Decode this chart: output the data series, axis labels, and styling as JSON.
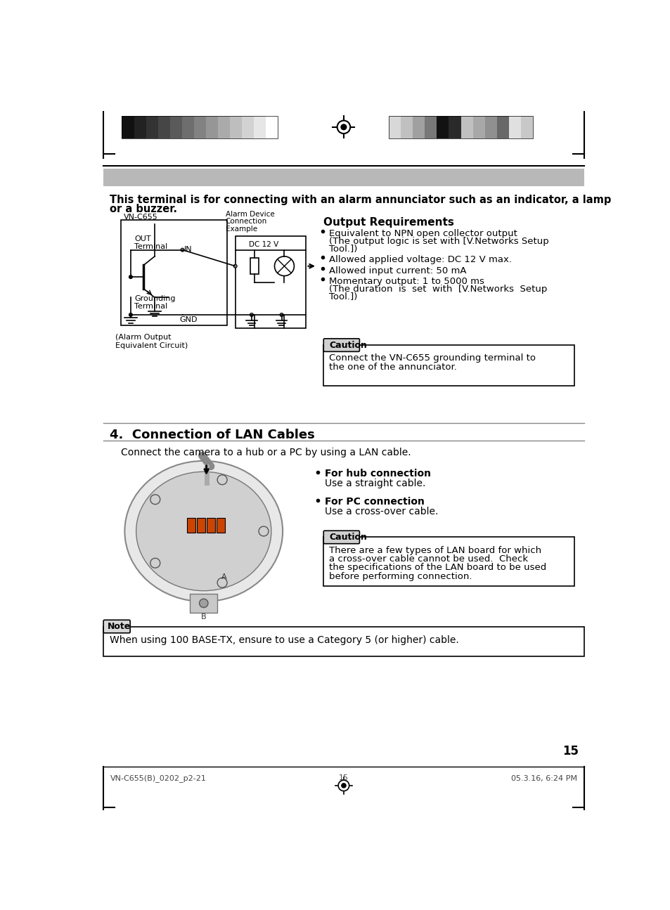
{
  "page_bg": "#ffffff",
  "outer_border_color": "#000000",
  "section_title": "4.  Connection of LAN Cables",
  "section_desc": "Connect the camera to a hub or a PC by using a LAN cable.",
  "bold_text_1": "This terminal is for connecting with an alarm annunciator such as an indicator, a lamp",
  "bold_text_2": "or a buzzer.",
  "output_req_title": "Output Requirements",
  "output_req_bullets": [
    "Equivalent to NPN open collector output\n(The output logic is set with [V.Networks Setup\nTool.])",
    "Allowed applied voltage: DC 12 V max.",
    "Allowed input current: 50 mA",
    "Momentary output: 1 to 5000 ms\n(The duration  is  set  with  [V.Networks  Setup\nTool.])"
  ],
  "caution1_label": "Caution",
  "caution1_text": "Connect the VN-C655 grounding terminal to\nthe one of the annunciator.",
  "caution2_label": "Caution",
  "caution2_text": "There are a few types of LAN board for which\na cross-over cable cannot be used.  Check\nthe specifications of the LAN board to be used\nbefore performing connection.",
  "note_label": "Note",
  "note_text": "When using 100 BASE-TX, ensure to use a Category 5 (or higher) cable.",
  "hub_bullet": "For hub connection",
  "hub_desc": "Use a straight cable.",
  "pc_bullet": "For PC connection",
  "pc_desc": "Use a cross-over cable.",
  "circuit_vn_c655": "VN-C655",
  "circuit_out_terminal": "OUT\nTerminal",
  "circuit_grounding": "Grounding\nTerminal",
  "circuit_alarm_device_1": "Alarm Device",
  "circuit_alarm_device_2": "Connection",
  "circuit_alarm_device_3": "Example",
  "circuit_gnd": "GND",
  "circuit_in": "IN",
  "circuit_dc12v": "DC 12 V",
  "circuit_alarm_output": "(Alarm Output\nEquivalent Circuit)",
  "page_number": "15",
  "footer_left": "VN-C655(B)_0202_p2-21",
  "footer_center": "15",
  "footer_right": "05.3.16, 6:24 PM",
  "gray_bar_color": "#b8b8b8",
  "colors_left": [
    "#111111",
    "#222222",
    "#333333",
    "#464646",
    "#5a5a5a",
    "#6e6e6e",
    "#828282",
    "#969696",
    "#aaaaaa",
    "#bebebe",
    "#d2d2d2",
    "#e6e6e6",
    "#ffffff"
  ],
  "colors_right": [
    "#d8d8d8",
    "#c0c0c0",
    "#a0a0a0",
    "#787878",
    "#121212",
    "#2a2a2a",
    "#c0c0c0",
    "#a8a8a8",
    "#909090",
    "#686868",
    "#e0e0e0",
    "#c8c8c8"
  ]
}
